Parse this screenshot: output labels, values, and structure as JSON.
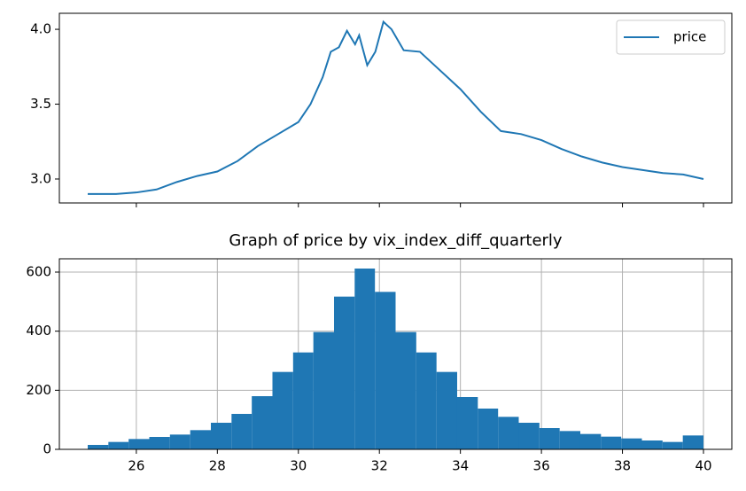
{
  "chart_data": [
    {
      "type": "line",
      "x": [
        24.8,
        25.5,
        26.0,
        26.5,
        27.0,
        27.5,
        28.0,
        28.5,
        29.0,
        29.5,
        30.0,
        30.3,
        30.6,
        30.8,
        31.0,
        31.2,
        31.4,
        31.5,
        31.7,
        31.9,
        32.1,
        32.3,
        32.6,
        33.0,
        33.4,
        34.0,
        34.5,
        35.0,
        35.5,
        36.0,
        36.5,
        37.0,
        37.5,
        38.0,
        38.5,
        39.0,
        39.5,
        40.0
      ],
      "series": [
        {
          "name": "price",
          "color": "#1f77b4",
          "values": [
            2.9,
            2.9,
            2.91,
            2.93,
            2.98,
            3.02,
            3.05,
            3.12,
            3.22,
            3.3,
            3.38,
            3.5,
            3.68,
            3.85,
            3.88,
            3.99,
            3.9,
            3.96,
            3.76,
            3.85,
            4.05,
            4.0,
            3.86,
            3.85,
            3.75,
            3.6,
            3.45,
            3.32,
            3.3,
            3.26,
            3.2,
            3.15,
            3.11,
            3.08,
            3.06,
            3.04,
            3.03,
            3.0
          ]
        }
      ],
      "xlim": [
        24.1,
        40.7
      ],
      "xticks": [
        26,
        30,
        32,
        34,
        38,
        40
      ],
      "ylim": [
        2.84,
        4.107
      ],
      "yticks": [
        {
          "value": 3.0,
          "label": "3.0"
        },
        3.5,
        {
          "value": 4.0,
          "label": "4.0"
        }
      ],
      "legend": "upper right",
      "grid": false
    },
    {
      "type": "histogram",
      "title": "Graph of price by vix_index_diff_quarterly",
      "color": "#1f77b4",
      "bins": [
        24.8,
        25.31,
        25.81,
        26.32,
        26.83,
        27.33,
        27.84,
        28.35,
        28.85,
        29.36,
        29.87,
        30.37,
        30.88,
        31.39,
        31.89,
        32.4,
        32.91,
        33.41,
        33.92,
        34.43,
        34.93,
        35.44,
        35.95,
        36.45,
        36.96,
        37.47,
        37.97,
        38.48,
        38.99,
        39.49,
        40.0
      ],
      "values": [
        15,
        25,
        35,
        42,
        50,
        65,
        90,
        120,
        180,
        262,
        328,
        397,
        517,
        612,
        533,
        397,
        328,
        262,
        177,
        138,
        110,
        90,
        72,
        62,
        52,
        43,
        37,
        30,
        25,
        47
      ],
      "xlim": [
        24.1,
        40.7
      ],
      "xticks": [
        26,
        28,
        30,
        32,
        34,
        36,
        38,
        40
      ],
      "ylim": [
        0,
        645
      ],
      "yticks": [
        0,
        200,
        400,
        600
      ],
      "grid": true
    }
  ]
}
